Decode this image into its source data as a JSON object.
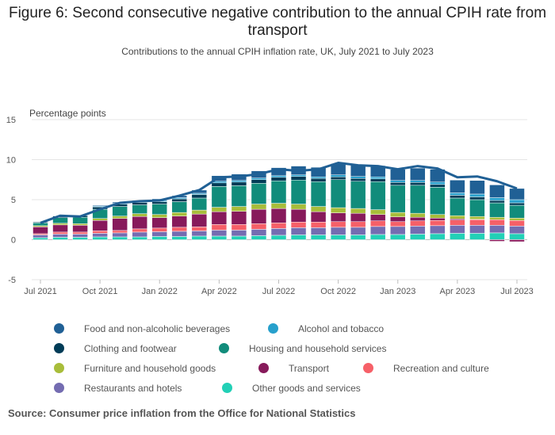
{
  "title": "Figure 6: Second consecutive negative contribution to the annual CPIH rate from transport",
  "subtitle": "Contributions to the annual CPIH inflation rate, UK, July 2021 to July 2023",
  "source": "Source: Consumer price inflation from the Office for National Statistics",
  "colors": {
    "Food and non-alcoholic beverages": "#206095",
    "Alcohol and tobacco": "#27a0cc",
    "Clothing and footwear": "#003c57",
    "Housing and household services": "#118c7b",
    "Furniture and household goods": "#a8bd3a",
    "Transport": "#871a5b",
    "Recreation and culture": "#f66068",
    "Restaurants and hotels": "#746cb1",
    "Other goods and services": "#22d0b6",
    "CPIH line": "#206095"
  },
  "chart_data": {
    "type": "bar",
    "stacked": true,
    "title": "Figure 6: Second consecutive negative contribution to the annual CPIH rate from transport",
    "subtitle": "Contributions to the annual CPIH inflation rate, UK, July 2021 to July 2023",
    "ylabel": "Percentage points",
    "ylim": [
      -5,
      15
    ],
    "yticks": [
      -5,
      0,
      5,
      10,
      15
    ],
    "grid": true,
    "legend_position": "bottom",
    "categories": [
      "Jul 2021",
      "Aug 2021",
      "Sep 2021",
      "Oct 2021",
      "Nov 2021",
      "Dec 2021",
      "Jan 2022",
      "Feb 2022",
      "Mar 2022",
      "Apr 2022",
      "May 2022",
      "Jun 2022",
      "Jul 2022",
      "Aug 2022",
      "Sep 2022",
      "Oct 2022",
      "Nov 2022",
      "Dec 2022",
      "Jan 2023",
      "Feb 2023",
      "Mar 2023",
      "Apr 2023",
      "May 2023",
      "Jun 2023",
      "Jul 2023"
    ],
    "xtick_labels": [
      "Jul 2021",
      "Oct 2021",
      "Jan 2022",
      "Apr 2022",
      "Jul 2022",
      "Oct 2022",
      "Jan 2023",
      "Apr 2023",
      "Jul 2023"
    ],
    "series": [
      {
        "name": "Other goods and services",
        "values": [
          0.25,
          0.3,
          0.3,
          0.35,
          0.35,
          0.35,
          0.4,
          0.4,
          0.45,
          0.45,
          0.45,
          0.5,
          0.55,
          0.6,
          0.6,
          0.6,
          0.6,
          0.65,
          0.65,
          0.7,
          0.75,
          0.8,
          0.8,
          0.85,
          0.75
        ]
      },
      {
        "name": "Restaurants and hotels",
        "values": [
          0.35,
          0.4,
          0.4,
          0.45,
          0.5,
          0.6,
          0.6,
          0.65,
          0.65,
          0.75,
          0.75,
          0.8,
          0.85,
          0.9,
          0.9,
          0.95,
          0.95,
          1.0,
          1.0,
          1.0,
          1.0,
          1.0,
          1.0,
          0.95,
          0.95
        ]
      },
      {
        "name": "Recreation and culture",
        "values": [
          0.15,
          0.25,
          0.25,
          0.3,
          0.3,
          0.4,
          0.45,
          0.5,
          0.5,
          0.7,
          0.7,
          0.7,
          0.7,
          0.7,
          0.7,
          0.7,
          0.7,
          0.7,
          0.6,
          0.65,
          0.65,
          0.65,
          0.7,
          0.7,
          0.7
        ]
      },
      {
        "name": "Transport",
        "values": [
          0.85,
          0.9,
          0.85,
          1.3,
          1.5,
          1.55,
          1.3,
          1.4,
          1.6,
          1.6,
          1.65,
          1.8,
          1.8,
          1.6,
          1.3,
          1.1,
          1.05,
          0.8,
          0.6,
          0.45,
          0.3,
          0.15,
          0.05,
          -0.2,
          -0.25
        ]
      },
      {
        "name": "Furniture and household goods",
        "values": [
          0.15,
          0.2,
          0.2,
          0.25,
          0.3,
          0.35,
          0.4,
          0.45,
          0.5,
          0.55,
          0.6,
          0.65,
          0.65,
          0.65,
          0.65,
          0.65,
          0.6,
          0.6,
          0.55,
          0.5,
          0.45,
          0.4,
          0.35,
          0.3,
          0.3
        ]
      },
      {
        "name": "Housing and household services",
        "values": [
          0.35,
          0.7,
          0.8,
          1.15,
          1.2,
          1.1,
          1.3,
          1.35,
          1.5,
          2.6,
          2.6,
          2.6,
          2.8,
          3.0,
          3.1,
          3.5,
          3.4,
          3.5,
          3.4,
          3.5,
          3.4,
          2.2,
          2.1,
          1.8,
          1.6
        ]
      },
      {
        "name": "Clothing and footwear",
        "values": [
          0.1,
          0.2,
          0.2,
          0.3,
          0.3,
          0.3,
          0.3,
          0.35,
          0.45,
          0.45,
          0.45,
          0.45,
          0.45,
          0.45,
          0.4,
          0.35,
          0.35,
          0.35,
          0.35,
          0.35,
          0.35,
          0.35,
          0.35,
          0.3,
          0.3
        ]
      },
      {
        "name": "Alcohol and tobacco",
        "values": [
          0.05,
          0.05,
          0.05,
          0.1,
          0.1,
          0.1,
          0.15,
          0.15,
          0.15,
          0.2,
          0.2,
          0.2,
          0.2,
          0.2,
          0.2,
          0.25,
          0.25,
          0.25,
          0.25,
          0.25,
          0.3,
          0.3,
          0.35,
          0.35,
          0.4
        ]
      },
      {
        "name": "Food and non-alcoholic beverages",
        "values": [
          0.05,
          0.05,
          0.05,
          0.1,
          0.15,
          0.15,
          0.2,
          0.25,
          0.4,
          0.7,
          0.8,
          0.9,
          1.0,
          1.1,
          1.2,
          1.4,
          1.4,
          1.4,
          1.4,
          1.55,
          1.6,
          1.6,
          1.7,
          1.6,
          1.4
        ]
      }
    ],
    "line": {
      "values": [
        2.1,
        3.0,
        2.9,
        3.8,
        4.6,
        4.8,
        4.9,
        5.5,
        6.2,
        7.8,
        7.9,
        8.2,
        8.8,
        8.6,
        8.8,
        9.6,
        9.3,
        9.2,
        8.8,
        9.2,
        8.9,
        7.8,
        7.9,
        7.3,
        6.4
      ]
    },
    "legend_order": [
      "Food and non-alcoholic beverages",
      "Alcohol and tobacco",
      "Clothing and footwear",
      "Housing and household services",
      "Furniture and household goods",
      "Transport",
      "Recreation and culture",
      "Restaurants and hotels",
      "Other goods and services"
    ]
  }
}
